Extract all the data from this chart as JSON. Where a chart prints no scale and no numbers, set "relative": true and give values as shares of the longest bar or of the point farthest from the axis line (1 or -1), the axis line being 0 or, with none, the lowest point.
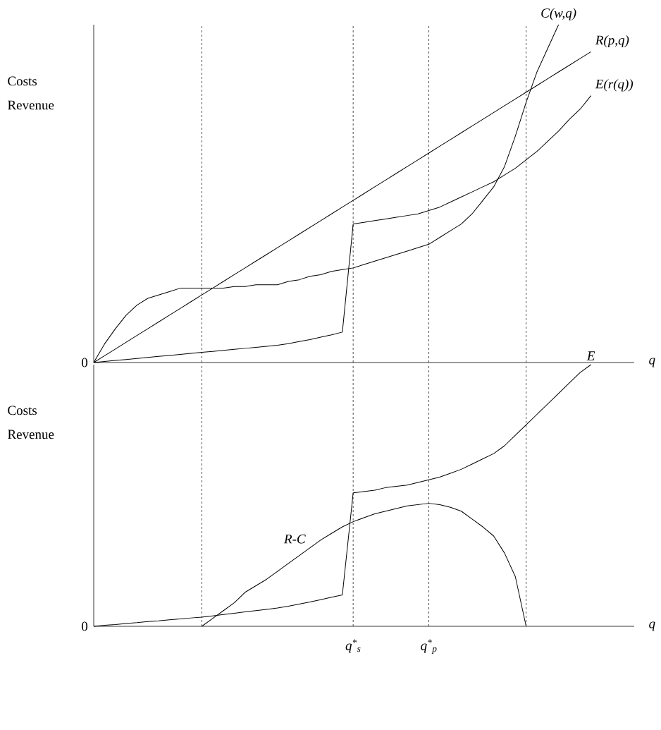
{
  "chart_data": [
    {
      "type": "line",
      "relative": true,
      "xlabel": "q",
      "ylabel": "Costs Revenue",
      "grid": "x",
      "categories": [
        null,
        null,
        null,
        null,
        null,
        null,
        null,
        null,
        null,
        null,
        null,
        null,
        null,
        null,
        null,
        null,
        null,
        null,
        null,
        null,
        null,
        null,
        null,
        null,
        null,
        null,
        null,
        null,
        null,
        null,
        null,
        null,
        null,
        null,
        null,
        null,
        null,
        null,
        null,
        null,
        null,
        null,
        null,
        null,
        null,
        null,
        null
      ],
      "series": [
        {
          "name": "C(w,q)",
          "color": "#000000",
          "values": [
            0,
            0.055,
            0.1,
            0.14,
            0.17,
            0.19,
            0.2,
            0.21,
            0.22,
            0.22,
            0.22,
            0.22,
            0.22,
            0.225,
            0.225,
            0.23,
            0.23,
            0.23,
            0.24,
            0.245,
            0.255,
            0.26,
            0.27,
            0.275,
            0.28,
            0.29,
            0.3,
            0.31,
            0.32,
            0.33,
            0.34,
            0.35,
            0.37,
            0.39,
            0.41,
            0.44,
            0.48,
            0.52,
            0.58,
            0.67,
            0.77,
            0.86,
            0.93,
            1.0,
            null,
            null,
            null
          ]
        },
        {
          "name": "R(p,q)",
          "color": "#000000",
          "values": [
            0,
            0.02,
            0.04,
            0.06,
            0.08,
            0.1,
            0.12,
            0.14,
            0.16,
            0.18,
            0.2,
            0.22,
            0.24,
            0.26,
            0.28,
            0.3,
            0.32,
            0.34,
            0.36,
            0.38,
            0.4,
            0.42,
            0.44,
            0.46,
            0.48,
            0.5,
            0.52,
            0.54,
            0.56,
            0.58,
            0.6,
            0.62,
            0.64,
            0.66,
            0.68,
            0.7,
            0.72,
            0.74,
            0.76,
            0.78,
            0.8,
            0.82,
            0.84,
            0.86,
            0.88,
            0.9,
            0.92
          ]
        },
        {
          "name": "E(r(q))",
          "color": "#000000",
          "values": [
            0,
            0.003,
            0.006,
            0.009,
            0.012,
            0.015,
            0.018,
            0.021,
            0.024,
            0.027,
            0.03,
            0.033,
            0.036,
            0.039,
            0.042,
            0.045,
            0.048,
            0.051,
            0.056,
            0.062,
            0.068,
            0.075,
            0.082,
            0.09,
            0.41,
            0.415,
            0.42,
            0.425,
            0.43,
            0.435,
            0.44,
            0.45,
            0.46,
            0.475,
            0.49,
            0.505,
            0.52,
            0.535,
            0.555,
            0.575,
            0.6,
            0.625,
            0.655,
            0.685,
            0.72,
            0.75,
            0.79
          ]
        }
      ],
      "annotations": [
        "0"
      ]
    },
    {
      "type": "line",
      "relative": true,
      "xlabel": "q",
      "ylabel": "Costs Revenue",
      "grid": "x",
      "categories": [
        null,
        null,
        null,
        null,
        null,
        null,
        null,
        null,
        null,
        null,
        null,
        null,
        null,
        null,
        null,
        null,
        null,
        null,
        null,
        null,
        null,
        null,
        null,
        null,
        "q$^{*}$$_{s}$",
        null,
        null,
        null,
        null,
        null,
        null,
        "q$^{*}$$_{p}$",
        null,
        null,
        null,
        null,
        null,
        null,
        null,
        null,
        null,
        null,
        null,
        null,
        null,
        null,
        null
      ],
      "series": [
        {
          "name": "E",
          "color": "#000000",
          "values": [
            0,
            0.004,
            0.007,
            0.011,
            0.014,
            0.018,
            0.021,
            0.025,
            0.028,
            0.032,
            0.035,
            0.04,
            0.045,
            0.05,
            0.055,
            0.06,
            0.065,
            0.07,
            0.077,
            0.085,
            0.093,
            0.102,
            0.111,
            0.12,
            0.51,
            0.515,
            0.52,
            0.53,
            0.535,
            0.54,
            0.55,
            0.56,
            0.57,
            0.585,
            0.6,
            0.62,
            0.64,
            0.66,
            0.69,
            0.73,
            0.77,
            0.81,
            0.85,
            0.89,
            0.93,
            0.97,
            1.0
          ]
        },
        {
          "name": "R-C",
          "color": "#000000",
          "values": [
            null,
            null,
            null,
            null,
            null,
            null,
            null,
            null,
            null,
            null,
            0,
            0.03,
            0.06,
            0.09,
            0.13,
            0.155,
            0.18,
            0.21,
            0.24,
            0.27,
            0.3,
            0.33,
            0.355,
            0.38,
            0.4,
            0.415,
            0.43,
            0.44,
            0.45,
            0.46,
            0.465,
            0.47,
            0.465,
            0.455,
            0.44,
            0.41,
            0.38,
            0.345,
            0.28,
            0.19,
            0,
            null,
            null,
            null,
            null,
            null,
            null
          ]
        }
      ],
      "annotations": [
        "0"
      ]
    }
  ]
}
